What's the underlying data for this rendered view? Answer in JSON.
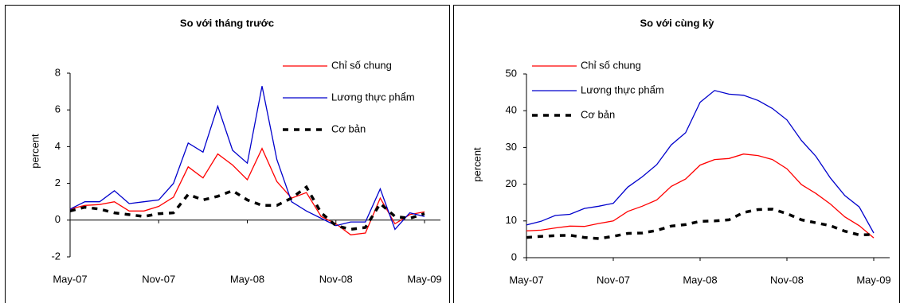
{
  "chart_data": [
    {
      "type": "line",
      "title": "So với tháng trước",
      "ylabel": "percent",
      "categories": [
        "May-07",
        null,
        null,
        null,
        null,
        null,
        "Nov-07",
        null,
        null,
        null,
        null,
        null,
        "May-08",
        null,
        null,
        null,
        null,
        null,
        "Nov-08",
        null,
        null,
        null,
        null,
        null,
        "May-09"
      ],
      "series": [
        {
          "name": "Chỉ số chung",
          "color": "#ff0000",
          "values": [
            0.6,
            0.8,
            0.85,
            1.0,
            0.5,
            0.5,
            0.75,
            1.25,
            2.9,
            2.3,
            3.6,
            3.0,
            2.2,
            3.9,
            2.1,
            1.2,
            1.5,
            0.2,
            -0.2,
            -0.8,
            -0.7,
            1.2,
            -0.2,
            0.3,
            0.45
          ]
        },
        {
          "name": "Lương thực phẩm",
          "color": "#0000cc",
          "values": [
            0.6,
            1.0,
            1.0,
            1.6,
            0.9,
            1.0,
            1.1,
            2.0,
            4.2,
            3.7,
            6.2,
            3.8,
            3.1,
            7.3,
            3.3,
            1.0,
            0.5,
            0.1,
            -0.3,
            -0.1,
            -0.1,
            1.7,
            -0.5,
            0.4,
            0.2
          ]
        },
        {
          "name": "Cơ bản",
          "color": "#000000",
          "dashed": true,
          "values": [
            0.5,
            0.7,
            0.6,
            0.4,
            0.3,
            0.2,
            0.35,
            0.4,
            1.4,
            1.1,
            1.3,
            1.6,
            1.1,
            0.8,
            0.8,
            1.2,
            1.8,
            0.4,
            -0.3,
            -0.5,
            -0.4,
            0.9,
            0.2,
            0.1,
            0.35
          ]
        }
      ],
      "ylim": [
        -2,
        8
      ],
      "yticks": [
        -2,
        0,
        2,
        4,
        6,
        8
      ]
    },
    {
      "type": "line",
      "title": "So với cùng kỳ",
      "ylabel": "percent",
      "categories": [
        "May-07",
        null,
        null,
        null,
        null,
        null,
        "Nov-07",
        null,
        null,
        null,
        null,
        null,
        "May-08",
        null,
        null,
        null,
        null,
        null,
        "Nov-08",
        null,
        null,
        null,
        null,
        null,
        "May-09"
      ],
      "series": [
        {
          "name": "Chỉ số chung",
          "color": "#ff0000",
          "values": [
            7.3,
            7.5,
            8.1,
            8.6,
            8.5,
            9.3,
            10,
            12.6,
            14,
            15.7,
            19.4,
            21.4,
            25.2,
            26.7,
            27,
            28.2,
            27.8,
            26.7,
            24.2,
            19.9,
            17.5,
            14.6,
            11.1,
            8.7,
            5.4
          ]
        },
        {
          "name": "Lương thực phẩm",
          "color": "#0000cc",
          "values": [
            8.9,
            9.9,
            11.5,
            11.8,
            13.4,
            14,
            14.8,
            19.2,
            22,
            25.3,
            30.7,
            34,
            42.3,
            45.5,
            44.5,
            44.2,
            42.8,
            40.6,
            37.5,
            31.9,
            27.6,
            21.7,
            16.9,
            13.8,
            6.7
          ]
        },
        {
          "name": "Cơ bản",
          "color": "#000000",
          "dashed": true,
          "values": [
            5.5,
            5.8,
            6,
            6.1,
            5.5,
            5.2,
            5.8,
            6.6,
            6.7,
            7.4,
            8.6,
            9,
            9.9,
            10,
            10.3,
            12.3,
            13.1,
            13.2,
            12,
            10.3,
            9.5,
            8.7,
            7.2,
            6.2,
            6.3
          ]
        }
      ],
      "ylim": [
        0,
        50
      ],
      "yticks": [
        0,
        10,
        20,
        30,
        40,
        50
      ]
    }
  ]
}
